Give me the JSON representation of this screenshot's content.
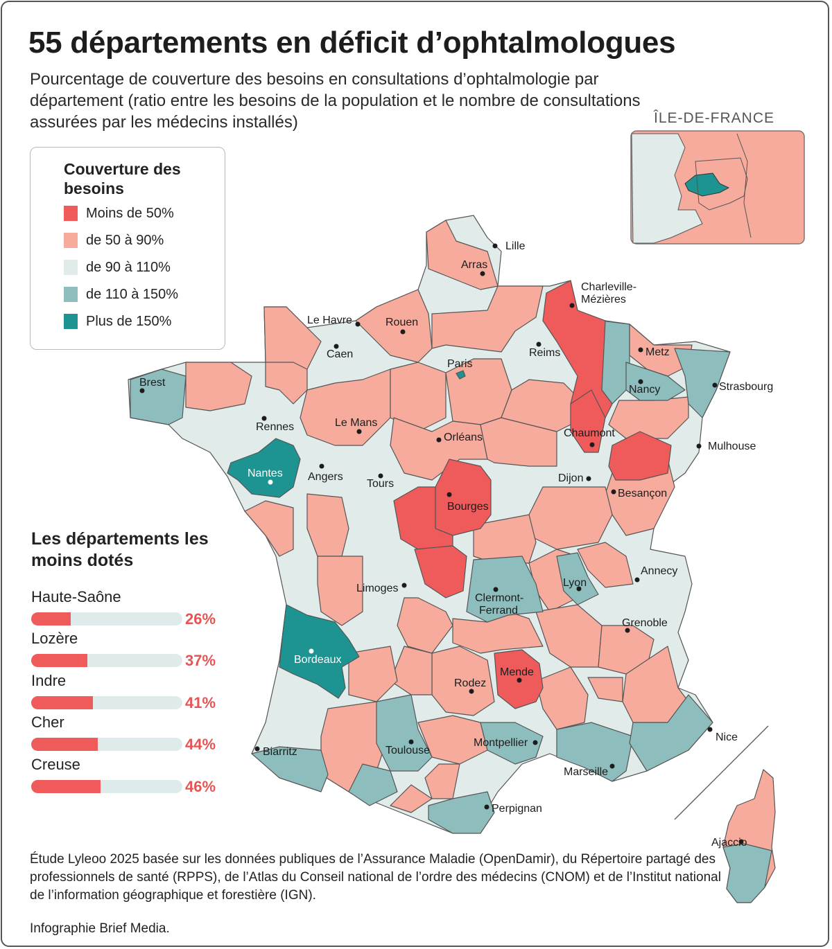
{
  "title": "55 départements en déficit d’ophtalmologues",
  "subtitle": "Pourcentage de couverture des besoins en consultations d’ophtalmologie par département (ratio entre les besoins de la population et le nombre de consultations assurées par les médecins installés)",
  "colors": {
    "lt50": "#ef5a5a",
    "50to90": "#f7ab9c",
    "90to110": "#e0ebea",
    "110to150": "#8dbdbd",
    "gt150": "#1d9492"
  },
  "legend": {
    "title": "Couverture des besoins",
    "items": [
      {
        "label": "Moins de 50%",
        "color": "#ef5a5a"
      },
      {
        "label": "de 50 à 90%",
        "color": "#f7ab9c"
      },
      {
        "label": "de 90 à 110%",
        "color": "#e0ebea"
      },
      {
        "label": "de 110 à 150%",
        "color": "#8dbdbd"
      },
      {
        "label": "Plus de 150%",
        "color": "#1d9492"
      }
    ]
  },
  "inset": {
    "title": "ÎLE-DE-FRANCE"
  },
  "cities": [
    "Lille",
    "Arras",
    "Charleville-",
    "Mézières",
    "Le Havre",
    "Rouen",
    "Caen",
    "Reims",
    "Metz",
    "Paris",
    "Brest",
    "Strasbourg",
    "Nancy",
    "Rennes",
    "Le Mans",
    "Orléans",
    "Chaumont",
    "Mulhouse",
    "Nantes",
    "Angers",
    "Tours",
    "Dijon",
    "Besançon",
    "Bourges",
    "Annecy",
    "Lyon",
    "Limoges",
    "Clermont-",
    "Ferrand",
    "Grenoble",
    "Bordeaux",
    "Mende",
    "Rodez",
    "Nice",
    "Montpellier",
    "Biarritz",
    "Toulouse",
    "Marseille",
    "Perpignan",
    "Ajaccio"
  ],
  "ranking": {
    "title": "Les départements les moins dotés",
    "items": [
      {
        "name": "Haute-Saône",
        "value": 26,
        "label": "26%"
      },
      {
        "name": "Lozère",
        "value": 37,
        "label": "37%"
      },
      {
        "name": "Indre",
        "value": 41,
        "label": "41%"
      },
      {
        "name": "Cher",
        "value": 44,
        "label": "44%"
      },
      {
        "name": "Creuse",
        "value": 46,
        "label": "46%"
      }
    ]
  },
  "footnote": "Étude Lyleoo 2025 basée sur les données publiques de l’Assurance Maladie (OpenDamir), du Répertoire partagé des professionnels de santé (RPPS), de l’Atlas du Conseil national de l’ordre des médecins (CNOM) et de l’Institut national de l’information géographique et forestière (IGN).",
  "credit": "Infographie Brief Media."
}
